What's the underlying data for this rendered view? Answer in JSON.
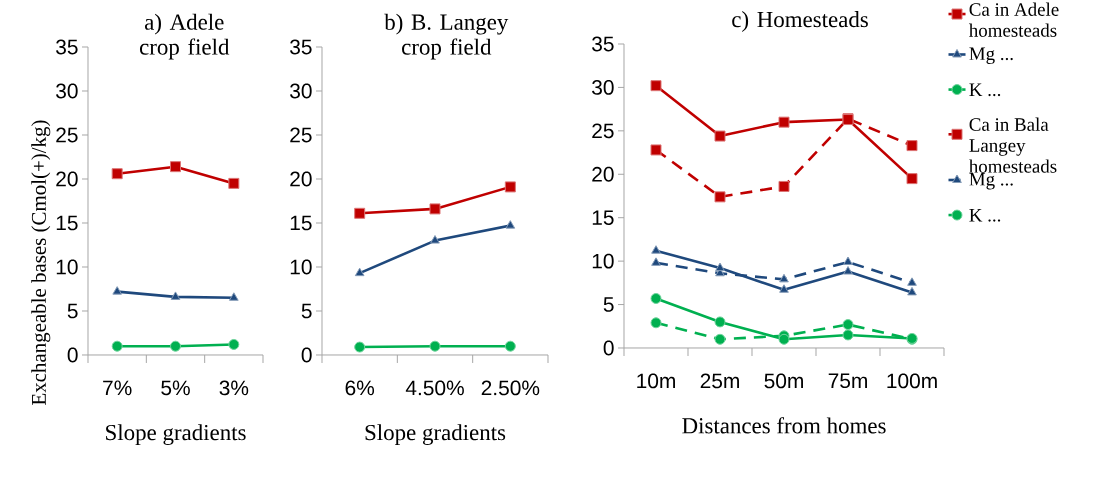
{
  "chart_data": [
    {
      "type": "line",
      "title": "a) Adele crop field",
      "xlabel": "Slope gradients",
      "ylabel": "Exchangeable bases (Cmol(+)/kg)",
      "categories": [
        "7%",
        "5%",
        "3%"
      ],
      "ylim": [
        0,
        35
      ],
      "yticks": [
        0,
        5,
        10,
        15,
        20,
        25,
        30,
        35
      ],
      "legend": false,
      "series": [
        {
          "color": "#c00000",
          "marker": "square",
          "line_style": "solid",
          "values": [
            20.6,
            21.4,
            19.5
          ]
        },
        {
          "color": "#1f497d",
          "marker": "triangle",
          "line_style": "solid",
          "values": [
            7.2,
            6.6,
            6.5
          ]
        },
        {
          "color": "#00b050",
          "marker": "circle",
          "line_style": "solid",
          "values": [
            1.0,
            1.0,
            1.2
          ]
        }
      ]
    },
    {
      "type": "line",
      "title": "b) B. Langey crop field",
      "xlabel": "Slope gradients",
      "categories": [
        "6%",
        "4.50%",
        "2.50%"
      ],
      "ylim": [
        0,
        35
      ],
      "yticks": [
        0,
        5,
        10,
        15,
        20,
        25,
        30,
        35
      ],
      "legend": false,
      "series": [
        {
          "color": "#c00000",
          "marker": "square",
          "line_style": "solid",
          "values": [
            16.1,
            16.6,
            19.1
          ]
        },
        {
          "color": "#1f497d",
          "marker": "triangle",
          "line_style": "solid",
          "values": [
            9.3,
            13.0,
            14.7
          ]
        },
        {
          "color": "#00b050",
          "marker": "circle",
          "line_style": "solid",
          "values": [
            0.9,
            1.0,
            1.0
          ]
        }
      ]
    },
    {
      "type": "line",
      "title": "c) Homesteads",
      "xlabel": "Distances from homes",
      "categories": [
        "10m",
        "25m",
        "50m",
        "75m",
        "100m"
      ],
      "ylim": [
        0,
        35
      ],
      "yticks": [
        0,
        5,
        10,
        15,
        20,
        25,
        30,
        35
      ],
      "legend": "right",
      "series": [
        {
          "name": "Ca in Adele homesteads",
          "color": "#c00000",
          "marker": "square",
          "line_style": "solid",
          "values": [
            30.2,
            24.4,
            26.0,
            26.3,
            19.5
          ]
        },
        {
          "name": "Mg ...",
          "color": "#1f497d",
          "marker": "triangle",
          "line_style": "solid",
          "values": [
            11.2,
            9.2,
            6.7,
            8.8,
            6.4
          ]
        },
        {
          "name": "K ...",
          "color": "#00b050",
          "marker": "circle",
          "line_style": "solid",
          "values": [
            5.7,
            3.0,
            1.0,
            1.5,
            1.1
          ]
        },
        {
          "name": "Ca in Bala Langey homesteads",
          "color": "#c00000",
          "marker": "square",
          "line_style": "dashed",
          "values": [
            22.8,
            17.4,
            18.6,
            26.4,
            23.3
          ]
        },
        {
          "name": "Mg ...",
          "color": "#1f497d",
          "marker": "triangle",
          "line_style": "dashed",
          "values": [
            9.8,
            8.6,
            7.9,
            9.9,
            7.5
          ]
        },
        {
          "name": "K ...",
          "color": "#00b050",
          "marker": "circle",
          "line_style": "dashed",
          "values": [
            2.9,
            1.0,
            1.4,
            2.7,
            1.0
          ]
        }
      ]
    }
  ]
}
